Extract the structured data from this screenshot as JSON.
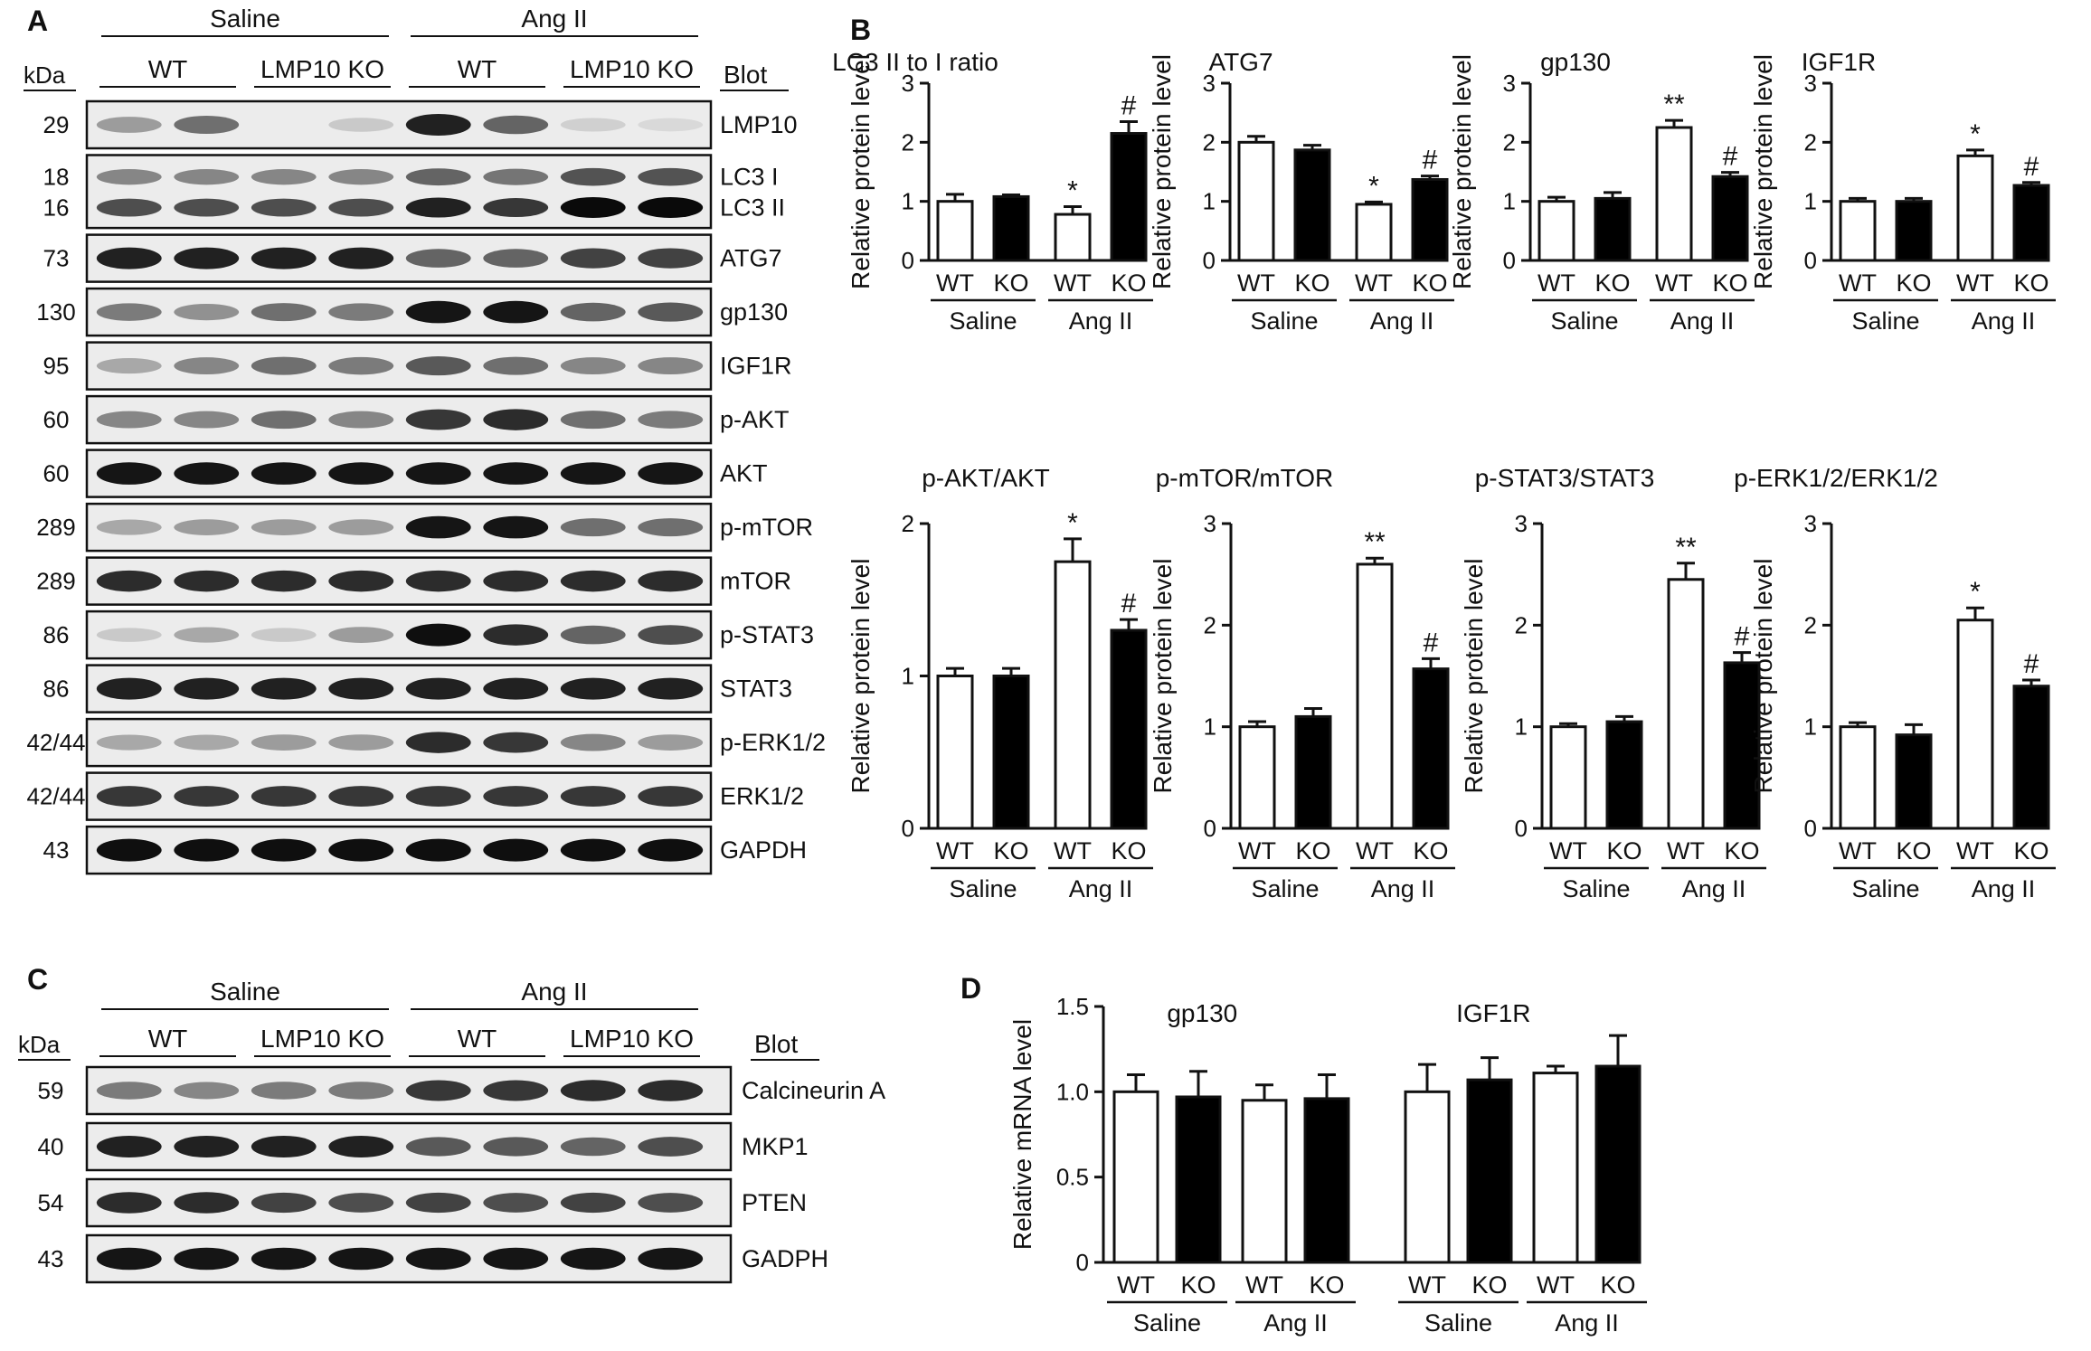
{
  "panel_letters": {
    "A": "A",
    "B": "B",
    "C": "C",
    "D": "D"
  },
  "panel_a": {
    "unit_label": "kDa",
    "blot_header": "Blot",
    "treatments": [
      "Saline",
      "Ang II"
    ],
    "genotypes": [
      "WT",
      "LMP10 KO",
      "WT",
      "LMP10 KO"
    ],
    "blots": [
      {
        "mw": "29",
        "labels": [
          "LMP10"
        ],
        "intensities": [
          0.35,
          0.55,
          0.0,
          0.15,
          0.9,
          0.6,
          0.12,
          0.08
        ]
      },
      {
        "mw": "18",
        "mw2": "16",
        "labels": [
          "LC3 I",
          "LC3 II"
        ],
        "intensities": [
          0.6,
          0.6,
          0.6,
          0.6,
          0.8,
          0.7,
          0.9,
          0.9
        ]
      },
      {
        "mw": "73",
        "labels": [
          "ATG7"
        ],
        "intensities": [
          0.9,
          0.9,
          0.9,
          0.9,
          0.6,
          0.6,
          0.75,
          0.75
        ]
      },
      {
        "mw": "130",
        "labels": [
          "gp130"
        ],
        "intensities": [
          0.5,
          0.4,
          0.55,
          0.5,
          0.95,
          0.95,
          0.6,
          0.65
        ]
      },
      {
        "mw": "95",
        "labels": [
          "IGF1R"
        ],
        "intensities": [
          0.3,
          0.45,
          0.55,
          0.5,
          0.65,
          0.55,
          0.45,
          0.45
        ]
      },
      {
        "mw": "60",
        "labels": [
          "p-AKT"
        ],
        "intensities": [
          0.45,
          0.45,
          0.55,
          0.45,
          0.8,
          0.85,
          0.55,
          0.5
        ]
      },
      {
        "mw": "60",
        "labels": [
          "AKT"
        ],
        "intensities": [
          0.95,
          0.95,
          0.95,
          0.95,
          0.95,
          0.95,
          0.95,
          0.95
        ]
      },
      {
        "mw": "289",
        "labels": [
          "p-mTOR"
        ],
        "intensities": [
          0.3,
          0.35,
          0.35,
          0.35,
          0.95,
          0.95,
          0.55,
          0.55
        ]
      },
      {
        "mw": "289",
        "labels": [
          "mTOR"
        ],
        "intensities": [
          0.85,
          0.85,
          0.85,
          0.85,
          0.85,
          0.85,
          0.85,
          0.85
        ]
      },
      {
        "mw": "86",
        "labels": [
          "p-STAT3"
        ],
        "intensities": [
          0.15,
          0.3,
          0.15,
          0.35,
          0.98,
          0.85,
          0.6,
          0.7
        ]
      },
      {
        "mw": "86",
        "labels": [
          "STAT3"
        ],
        "intensities": [
          0.9,
          0.9,
          0.9,
          0.9,
          0.9,
          0.9,
          0.9,
          0.9
        ]
      },
      {
        "mw": "42/44",
        "labels": [
          "p-ERK1/2"
        ],
        "intensities": [
          0.3,
          0.3,
          0.35,
          0.35,
          0.85,
          0.8,
          0.45,
          0.35
        ]
      },
      {
        "mw": "42/44",
        "labels": [
          "ERK1/2"
        ],
        "intensities": [
          0.8,
          0.8,
          0.8,
          0.8,
          0.8,
          0.8,
          0.8,
          0.8
        ]
      },
      {
        "mw": "43",
        "labels": [
          "GAPDH"
        ],
        "intensities": [
          0.98,
          0.98,
          0.98,
          0.98,
          0.98,
          0.98,
          0.98,
          0.98
        ]
      }
    ]
  },
  "panel_c": {
    "unit_label": "kDa",
    "blot_header": "Blot",
    "treatments": [
      "Saline",
      "Ang II"
    ],
    "genotypes": [
      "WT",
      "LMP10 KO",
      "WT",
      "LMP10 KO"
    ],
    "blots": [
      {
        "mw": "59",
        "labels": [
          "Calcineurin A"
        ],
        "intensities": [
          0.5,
          0.45,
          0.5,
          0.5,
          0.8,
          0.8,
          0.85,
          0.85
        ]
      },
      {
        "mw": "40",
        "labels": [
          "MKP1"
        ],
        "intensities": [
          0.9,
          0.9,
          0.9,
          0.9,
          0.65,
          0.65,
          0.6,
          0.7
        ]
      },
      {
        "mw": "54",
        "labels": [
          "PTEN"
        ],
        "intensities": [
          0.85,
          0.85,
          0.75,
          0.7,
          0.75,
          0.7,
          0.75,
          0.7
        ]
      },
      {
        "mw": "43",
        "labels": [
          "GADPH"
        ],
        "intensities": [
          0.95,
          0.95,
          0.95,
          0.95,
          0.95,
          0.95,
          0.95,
          0.95
        ]
      }
    ]
  },
  "chart_data": [
    {
      "type": "bar",
      "panel": "B",
      "title": "LC3 II to I ratio",
      "ylabel": "Relative protein level",
      "ylim": [
        0,
        3
      ],
      "yticks": [
        "0",
        "1",
        "2",
        "3"
      ],
      "categories": [
        "WT",
        "KO",
        "WT",
        "KO"
      ],
      "groups": [
        "Saline",
        "Ang II"
      ],
      "values": [
        1.0,
        1.08,
        0.78,
        2.15
      ],
      "errors": [
        0.12,
        0.03,
        0.13,
        0.2
      ],
      "fills": [
        "#ffffff",
        "#000000",
        "#ffffff",
        "#000000"
      ],
      "annotations": [
        "",
        "",
        "*",
        "#"
      ]
    },
    {
      "type": "bar",
      "panel": "B",
      "title": "ATG7",
      "ylabel": "Relative protein level",
      "ylim": [
        0,
        3
      ],
      "yticks": [
        "0",
        "1",
        "2",
        "3"
      ],
      "categories": [
        "WT",
        "KO",
        "WT",
        "KO"
      ],
      "groups": [
        "Saline",
        "Ang II"
      ],
      "values": [
        2.0,
        1.87,
        0.95,
        1.37
      ],
      "errors": [
        0.1,
        0.08,
        0.04,
        0.06
      ],
      "fills": [
        "#ffffff",
        "#000000",
        "#ffffff",
        "#000000"
      ],
      "annotations": [
        "",
        "",
        "*",
        "#"
      ]
    },
    {
      "type": "bar",
      "panel": "B",
      "title": "gp130",
      "ylabel": "Relative protein level",
      "ylim": [
        0,
        3
      ],
      "yticks": [
        "0",
        "1",
        "2",
        "3"
      ],
      "categories": [
        "WT",
        "KO",
        "WT",
        "KO"
      ],
      "groups": [
        "Saline",
        "Ang II"
      ],
      "values": [
        1.0,
        1.05,
        2.25,
        1.42
      ],
      "errors": [
        0.07,
        0.1,
        0.12,
        0.07
      ],
      "fills": [
        "#ffffff",
        "#000000",
        "#ffffff",
        "#000000"
      ],
      "annotations": [
        "",
        "",
        "**",
        "#"
      ]
    },
    {
      "type": "bar",
      "panel": "B",
      "title": "IGF1R",
      "ylabel": "Relative protein level",
      "ylim": [
        0,
        3
      ],
      "yticks": [
        "0",
        "1",
        "2",
        "3"
      ],
      "categories": [
        "WT",
        "KO",
        "WT",
        "KO"
      ],
      "groups": [
        "Saline",
        "Ang II"
      ],
      "values": [
        1.0,
        1.0,
        1.77,
        1.27
      ],
      "errors": [
        0.05,
        0.05,
        0.1,
        0.05
      ],
      "fills": [
        "#ffffff",
        "#000000",
        "#ffffff",
        "#000000"
      ],
      "annotations": [
        "",
        "",
        "*",
        "#"
      ]
    },
    {
      "type": "bar",
      "panel": "B",
      "title": "p-AKT/AKT",
      "ylabel": "Relative protein level",
      "ylim": [
        0,
        2
      ],
      "yticks": [
        "0",
        "1",
        "2"
      ],
      "categories": [
        "WT",
        "KO",
        "WT",
        "KO"
      ],
      "groups": [
        "Saline",
        "Ang II"
      ],
      "values": [
        1.0,
        1.0,
        1.75,
        1.3
      ],
      "errors": [
        0.05,
        0.05,
        0.15,
        0.07
      ],
      "fills": [
        "#ffffff",
        "#000000",
        "#ffffff",
        "#000000"
      ],
      "annotations": [
        "",
        "",
        "*",
        "#"
      ]
    },
    {
      "type": "bar",
      "panel": "B",
      "title": "p-mTOR/mTOR",
      "ylabel": "Relative protein level",
      "ylim": [
        0,
        3
      ],
      "yticks": [
        "0",
        "1",
        "2",
        "3"
      ],
      "categories": [
        "WT",
        "KO",
        "WT",
        "KO"
      ],
      "groups": [
        "Saline",
        "Ang II"
      ],
      "values": [
        1.0,
        1.1,
        2.6,
        1.57
      ],
      "errors": [
        0.05,
        0.08,
        0.06,
        0.1
      ],
      "fills": [
        "#ffffff",
        "#000000",
        "#ffffff",
        "#000000"
      ],
      "annotations": [
        "",
        "",
        "**",
        "#"
      ]
    },
    {
      "type": "bar",
      "panel": "B",
      "title": "p-STAT3/STAT3",
      "ylabel": "Relative protein level",
      "ylim": [
        0,
        3
      ],
      "yticks": [
        "0",
        "1",
        "2",
        "3"
      ],
      "categories": [
        "WT",
        "KO",
        "WT",
        "KO"
      ],
      "groups": [
        "Saline",
        "Ang II"
      ],
      "values": [
        1.0,
        1.05,
        2.45,
        1.63
      ],
      "errors": [
        0.03,
        0.05,
        0.16,
        0.1
      ],
      "fills": [
        "#ffffff",
        "#000000",
        "#ffffff",
        "#000000"
      ],
      "annotations": [
        "",
        "",
        "**",
        "#"
      ]
    },
    {
      "type": "bar",
      "panel": "B",
      "title": "p-ERK1/2/ERK1/2",
      "ylabel": "Relative protein level",
      "ylim": [
        0,
        3
      ],
      "yticks": [
        "0",
        "1",
        "2",
        "3"
      ],
      "categories": [
        "WT",
        "KO",
        "WT",
        "KO"
      ],
      "groups": [
        "Saline",
        "Ang II"
      ],
      "values": [
        1.0,
        0.92,
        2.05,
        1.4
      ],
      "errors": [
        0.04,
        0.1,
        0.12,
        0.06
      ],
      "fills": [
        "#ffffff",
        "#000000",
        "#ffffff",
        "#000000"
      ],
      "annotations": [
        "",
        "",
        "*",
        "#"
      ]
    },
    {
      "type": "bar",
      "panel": "D",
      "title": "",
      "ylabel": "Relative mRNA level",
      "ylim": [
        0,
        1.5
      ],
      "yticks": [
        "0",
        "0.5",
        "1.0",
        "1.5"
      ],
      "genes": [
        "gp130",
        "IGF1R"
      ],
      "categories": [
        "WT",
        "KO",
        "WT",
        "KO"
      ],
      "groups": [
        "Saline",
        "Ang II"
      ],
      "series": [
        {
          "gene": "gp130",
          "values": [
            1.0,
            0.97,
            0.95,
            0.96
          ],
          "errors": [
            0.1,
            0.15,
            0.09,
            0.14
          ]
        },
        {
          "gene": "IGF1R",
          "values": [
            1.0,
            1.07,
            1.11,
            1.15
          ],
          "errors": [
            0.16,
            0.13,
            0.04,
            0.18
          ]
        }
      ],
      "fills": [
        "#ffffff",
        "#000000",
        "#ffffff",
        "#000000"
      ]
    }
  ]
}
